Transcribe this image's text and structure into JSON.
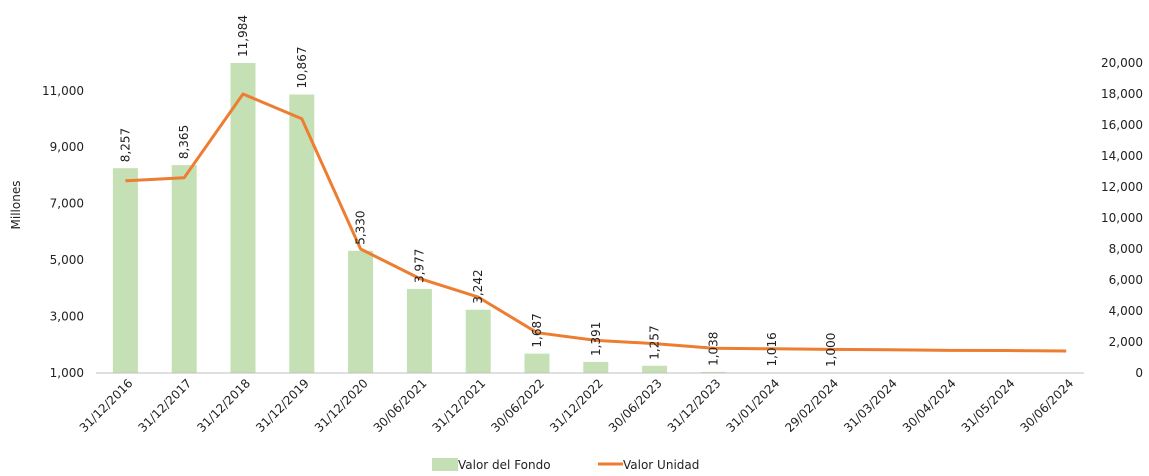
{
  "chart_data": {
    "type": "bar",
    "ylabel": "Millones",
    "categories": [
      "31/12/2016",
      "31/12/2017",
      "31/12/2018",
      "31/12/2019",
      "31/12/2020",
      "30/06/2021",
      "31/12/2021",
      "30/06/2022",
      "31/12/2022",
      "30/06/2023",
      "31/12/2023",
      "31/01/2024",
      "29/02/2024",
      "31/03/2024",
      "30/04/2024",
      "31/05/2024",
      "30/06/2024"
    ],
    "y_left": {
      "min": 1000,
      "max": 11984,
      "ticks": [
        "1,000",
        "3,000",
        "5,000",
        "7,000",
        "9,000",
        "11,000"
      ],
      "tick_values": [
        1000,
        3000,
        5000,
        7000,
        9000,
        11000
      ]
    },
    "y_right": {
      "min": 0,
      "max": 20000,
      "ticks": [
        "0",
        "2,000",
        "4,000",
        "6,000",
        "8,000",
        "10,000",
        "12,000",
        "14,000",
        "16,000",
        "18,000",
        "20,000"
      ],
      "tick_values": [
        0,
        2000,
        4000,
        6000,
        8000,
        10000,
        12000,
        14000,
        16000,
        18000,
        20000
      ]
    },
    "series": [
      {
        "name": "Valor del Fondo",
        "kind": "bar",
        "axis": "left",
        "color": "#c5e0b4",
        "values": [
          8257,
          8365,
          11984,
          10867,
          5330,
          3977,
          3242,
          1687,
          1391,
          1257,
          1038,
          1016,
          1000,
          null,
          null,
          null,
          null
        ],
        "labels": [
          "8,257",
          "8,365",
          "11,984",
          "10,867",
          "5,330",
          "3,977",
          "3,242",
          "1,687",
          "1,391",
          "1,257",
          "1,038",
          "1,016",
          "1,000",
          "",
          "",
          "",
          ""
        ]
      },
      {
        "name": "Valor Unidad",
        "kind": "line",
        "axis": "right",
        "color": "#ed7d31",
        "values": [
          12400,
          12600,
          18000,
          16400,
          8000,
          6100,
          4900,
          2600,
          2100,
          1900,
          1600,
          1560,
          1520,
          1500,
          1460,
          1450,
          1420
        ]
      }
    ]
  }
}
